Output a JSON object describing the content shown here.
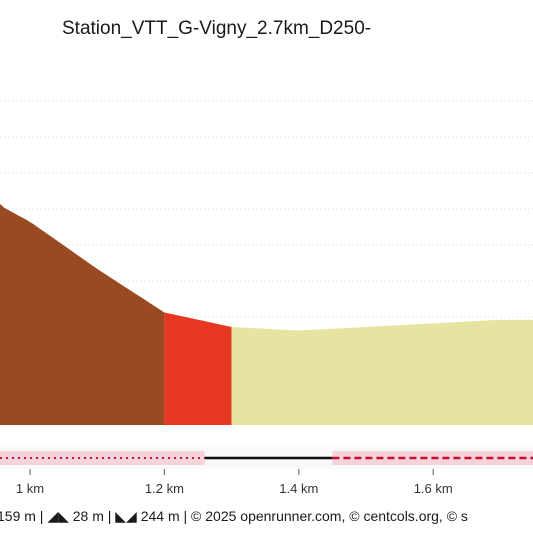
{
  "chart_data": {
    "type": "area",
    "title": "Station_VTT_G-Vigny_2.7km_D250-",
    "xlabel": "",
    "ylabel": "",
    "x_unit": "km",
    "xlim": [
      0.94,
      1.77
    ],
    "x_ticks": [
      1.0,
      1.2,
      1.4,
      1.6
    ],
    "x_tick_labels": [
      "1 km",
      "1.2 km",
      "1.4 km",
      "1.6 km"
    ],
    "grid": true,
    "profile": {
      "x": [
        0.94,
        1.0,
        1.1,
        1.2,
        1.3,
        1.4,
        1.5,
        1.6,
        1.7,
        1.77
      ],
      "y": [
        0.62,
        0.56,
        0.43,
        0.31,
        0.27,
        0.26,
        0.27,
        0.28,
        0.29,
        0.29
      ]
    },
    "segments": [
      {
        "x_start": 0.94,
        "x_end": 1.2,
        "color": "#9a4a22"
      },
      {
        "x_start": 1.2,
        "x_end": 1.3,
        "color": "#e63820"
      },
      {
        "x_start": 1.3,
        "x_end": 1.77,
        "color": "#e6e4a0"
      }
    ],
    "surface_track": [
      {
        "x_start": 0.94,
        "x_end": 1.26,
        "style": "pink-dotted"
      },
      {
        "x_start": 1.26,
        "x_end": 1.45,
        "style": "solid-black"
      },
      {
        "x_start": 1.45,
        "x_end": 1.77,
        "style": "pink-dashed"
      }
    ]
  },
  "footer": {
    "text": "159 m | ◢◣ 28 m | ◣◢ 244 m | © 2025 openrunner.com, © centcols.org, © s"
  },
  "colors": {
    "grid": "#d8d8d8",
    "track_pink": "#f6d2da",
    "track_red": "#c8102e",
    "track_dark": "#111111"
  }
}
